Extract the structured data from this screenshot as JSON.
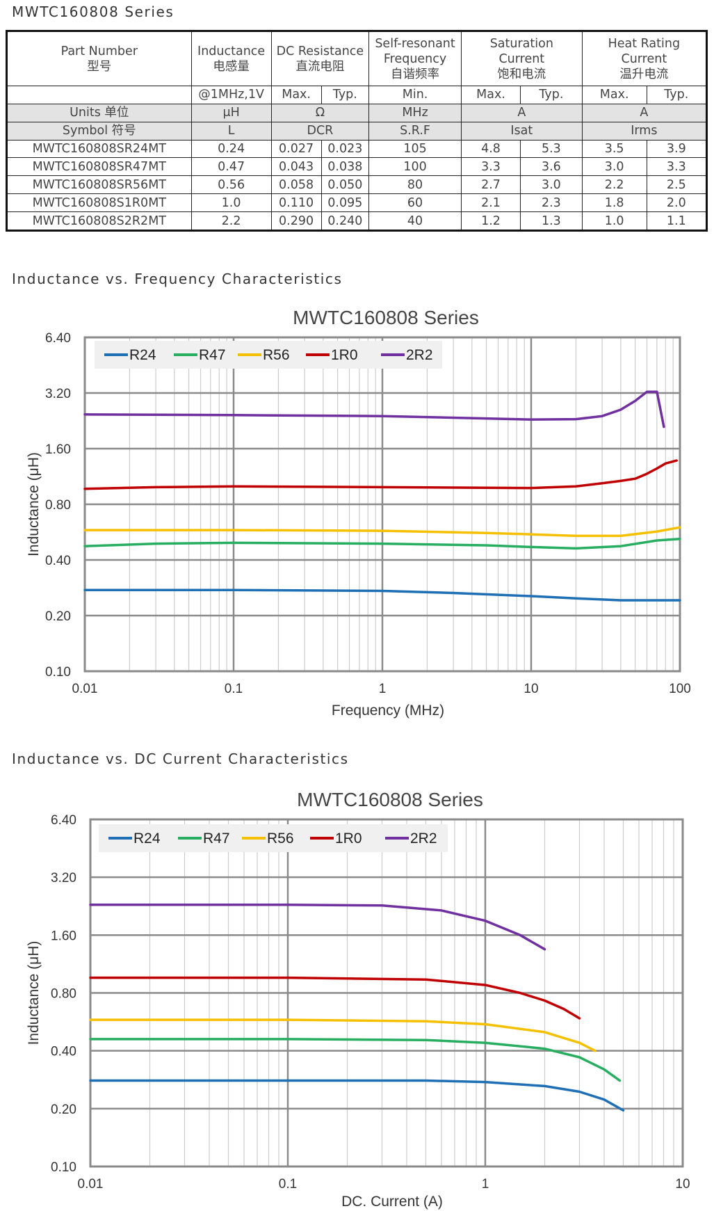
{
  "table_section": {
    "title": "MWTC160808 Series"
  },
  "table": {
    "header": {
      "part_number": "Part Number",
      "part_number_cn": "型号",
      "inductance": "Inductance",
      "inductance_cn": "电感量",
      "dcr": "DC Resistance",
      "dcr_cn": "直流电阻",
      "srf_1": "Self-resonant",
      "srf_2": "Frequency",
      "srf_cn": "自谐频率",
      "sat_1": "Saturation",
      "sat_2": "Current",
      "sat_cn": "饱和电流",
      "heat_1": "Heat Rating",
      "heat_2": "Current",
      "heat_cn": "温升电流"
    },
    "sub": {
      "cond": "@1MHz,1V",
      "dcr_max": "Max.",
      "dcr_typ": "Typ.",
      "srf_min": "Min.",
      "sat_max": "Max.",
      "sat_typ": "Typ.",
      "heat_max": "Max.",
      "heat_typ": "Typ."
    },
    "units": {
      "label": "Units  单位",
      "l": "μH",
      "dcr": "Ω",
      "srf": "MHz",
      "isat": "A",
      "irms": "A"
    },
    "symbol": {
      "label": "Symbol  符号",
      "l": "L",
      "dcr": "DCR",
      "srf": "S.R.F",
      "isat": "Isat",
      "irms": "Irms"
    },
    "rows": [
      [
        "MWTC160808SR24MT",
        "0.24",
        "0.027",
        "0.023",
        "105",
        "4.8",
        "5.3",
        "3.5",
        "3.9"
      ],
      [
        "MWTC160808SR47MT",
        "0.47",
        "0.043",
        "0.038",
        "100",
        "3.3",
        "3.6",
        "3.0",
        "3.3"
      ],
      [
        "MWTC160808SR56MT",
        "0.56",
        "0.058",
        "0.050",
        "80",
        "2.7",
        "3.0",
        "2.2",
        "2.5"
      ],
      [
        "MWTC160808S1R0MT",
        "1.0",
        "0.110",
        "0.095",
        "60",
        "2.1",
        "2.3",
        "1.8",
        "2.0"
      ],
      [
        "MWTC160808S2R2MT",
        "2.2",
        "0.290",
        "0.240",
        "40",
        "1.2",
        "1.3",
        "1.0",
        "1.1"
      ]
    ]
  },
  "freq_section": {
    "title": "Inductance vs. Frequency Characteristics"
  },
  "current_section": {
    "title": "Inductance vs. DC Current Characteristics"
  },
  "chart_data": [
    {
      "type": "line",
      "title": "MWTC160808 Series",
      "xlabel": "Frequency (MHz)",
      "ylabel": "Inductance (μH)",
      "xscale": "log",
      "yscale": "log",
      "xlim": [
        0.01,
        100
      ],
      "ylim": [
        0.1,
        6.4
      ],
      "xticks": [
        0.01,
        0.1,
        1,
        10,
        100
      ],
      "xtick_labels": [
        "0.01",
        "0.1",
        "1",
        "10",
        "100"
      ],
      "yticks": [
        0.1,
        0.2,
        0.4,
        0.8,
        1.6,
        3.2,
        6.4
      ],
      "ytick_labels": [
        "0.10",
        "0.20",
        "0.40",
        "0.80",
        "1.60",
        "3.20",
        "6.40"
      ],
      "legend_position": "top-left",
      "series": [
        {
          "name": "R24",
          "color": "#1f6fb5",
          "x": [
            0.01,
            0.1,
            1,
            3,
            10,
            20,
            40,
            100
          ],
          "y": [
            0.275,
            0.275,
            0.272,
            0.265,
            0.255,
            0.248,
            0.242,
            0.242
          ]
        },
        {
          "name": "R47",
          "color": "#27ae60",
          "x": [
            0.01,
            0.03,
            0.1,
            1,
            5,
            10,
            20,
            40,
            70,
            100
          ],
          "y": [
            0.475,
            0.49,
            0.495,
            0.49,
            0.48,
            0.47,
            0.462,
            0.475,
            0.51,
            0.52
          ]
        },
        {
          "name": "R56",
          "color": "#f5c000",
          "x": [
            0.01,
            0.1,
            1,
            5,
            10,
            20,
            40,
            70,
            100
          ],
          "y": [
            0.58,
            0.58,
            0.575,
            0.56,
            0.55,
            0.54,
            0.54,
            0.57,
            0.6
          ]
        },
        {
          "name": "1R0",
          "color": "#c00000",
          "x": [
            0.01,
            0.03,
            0.1,
            1,
            10,
            20,
            30,
            40,
            50,
            60,
            70,
            80,
            95
          ],
          "y": [
            0.97,
            0.99,
            1.0,
            0.99,
            0.98,
            1.0,
            1.04,
            1.07,
            1.1,
            1.17,
            1.25,
            1.33,
            1.38
          ]
        },
        {
          "name": "2R2",
          "color": "#7030a0",
          "x": [
            0.01,
            0.1,
            1,
            10,
            20,
            30,
            40,
            50,
            60,
            70,
            78
          ],
          "y": [
            2.45,
            2.43,
            2.4,
            2.3,
            2.31,
            2.4,
            2.6,
            2.9,
            3.25,
            3.25,
            2.1
          ]
        }
      ]
    },
    {
      "type": "line",
      "title": "MWTC160808 Series",
      "xlabel": "DC. Current (A)",
      "ylabel": "Inductance (μH)",
      "xscale": "log",
      "yscale": "log",
      "xlim": [
        0.01,
        10
      ],
      "ylim": [
        0.1,
        6.4
      ],
      "xticks": [
        0.01,
        0.1,
        1,
        10
      ],
      "xtick_labels": [
        "0.01",
        "0.1",
        "1",
        "10"
      ],
      "yticks": [
        0.1,
        0.2,
        0.4,
        0.8,
        1.6,
        3.2,
        6.4
      ],
      "ytick_labels": [
        "0.10",
        "0.20",
        "0.40",
        "0.80",
        "1.60",
        "3.20",
        "6.40"
      ],
      "legend_position": "top-left",
      "series": [
        {
          "name": "R24",
          "color": "#1f6fb5",
          "x": [
            0.01,
            0.1,
            0.5,
            1,
            2,
            3,
            4,
            5
          ],
          "y": [
            0.28,
            0.28,
            0.28,
            0.275,
            0.262,
            0.245,
            0.223,
            0.196
          ]
        },
        {
          "name": "R47",
          "color": "#27ae60",
          "x": [
            0.01,
            0.1,
            0.5,
            1,
            2,
            3,
            4,
            4.8
          ],
          "y": [
            0.46,
            0.46,
            0.455,
            0.44,
            0.41,
            0.37,
            0.32,
            0.28
          ]
        },
        {
          "name": "R56",
          "color": "#f5c000",
          "x": [
            0.01,
            0.1,
            0.5,
            1,
            2,
            3,
            3.6
          ],
          "y": [
            0.58,
            0.58,
            0.57,
            0.55,
            0.5,
            0.44,
            0.4
          ]
        },
        {
          "name": "1R0",
          "color": "#c00000",
          "x": [
            0.01,
            0.1,
            0.5,
            1,
            1.5,
            2,
            2.5,
            3
          ],
          "y": [
            0.96,
            0.96,
            0.94,
            0.88,
            0.8,
            0.73,
            0.66,
            0.59
          ]
        },
        {
          "name": "2R2",
          "color": "#7030a0",
          "x": [
            0.01,
            0.1,
            0.3,
            0.6,
            1,
            1.5,
            2
          ],
          "y": [
            2.3,
            2.3,
            2.28,
            2.15,
            1.9,
            1.6,
            1.35
          ]
        }
      ]
    }
  ]
}
